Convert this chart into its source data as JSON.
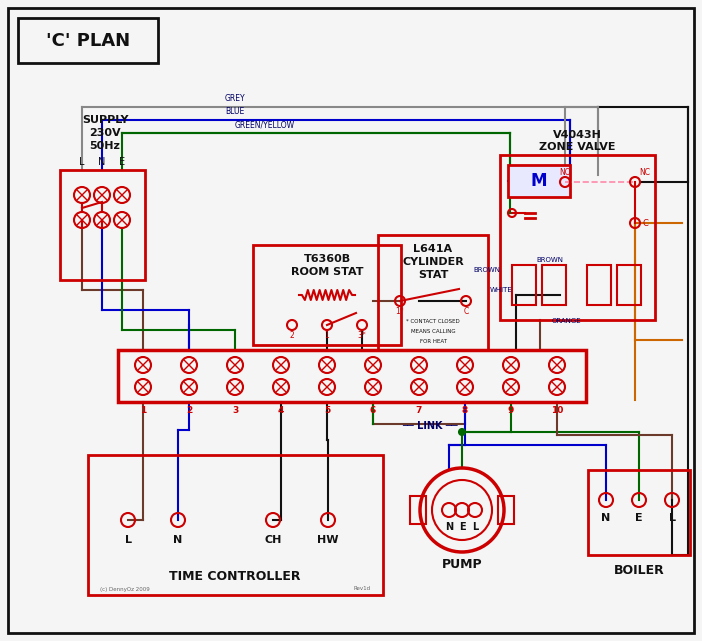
{
  "title": "'C' PLAN",
  "bg_color": "#f5f5f5",
  "red": "#cc0000",
  "blue": "#0000cc",
  "green": "#006600",
  "grey": "#888888",
  "brown": "#6B3A2A",
  "orange": "#cc6600",
  "black": "#111111",
  "pink_dashed": "#ff88aa",
  "text_dark": "#111111",
  "text_wire": "#000066",
  "copyright": "(c) DennyOz 2009",
  "rev": "Rev1d"
}
